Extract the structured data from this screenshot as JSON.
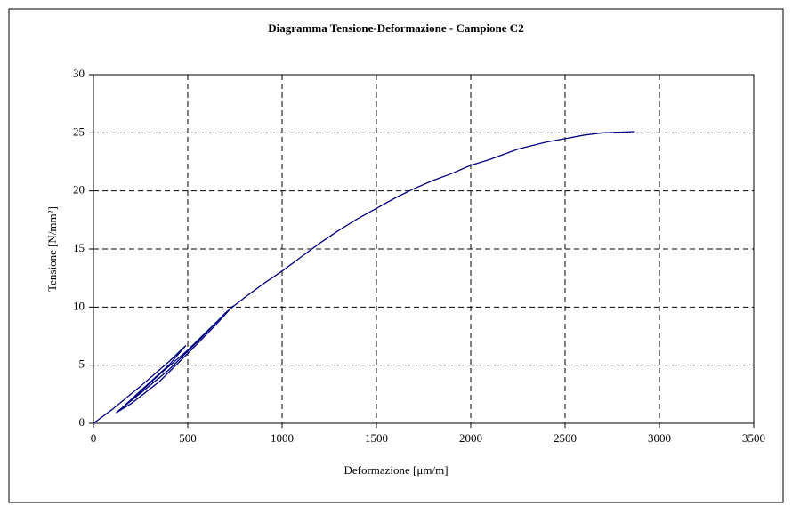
{
  "chart_data": {
    "type": "line",
    "title": "Diagramma Tensione-Deformazione - Campione C2",
    "xlabel": "Deformazione [μm/m]",
    "ylabel": "Tensione [N/mm²]",
    "x": [
      0,
      100,
      250,
      400,
      490,
      400,
      250,
      150,
      120,
      200,
      350,
      500,
      620,
      740,
      650,
      500,
      350,
      200,
      120,
      250,
      400,
      550,
      700,
      745,
      800,
      900,
      1000,
      1100,
      1200,
      1300,
      1400,
      1500,
      1600,
      1700,
      1800,
      1900,
      2000,
      2100,
      2250,
      2400,
      2500,
      2600,
      2700,
      2870
    ],
    "series": [
      {
        "name": "C2",
        "color": "#000080",
        "values": [
          0,
          1.2,
          3.2,
          5.3,
          6.7,
          5.0,
          2.8,
          1.3,
          0.9,
          2.0,
          4.2,
          6.3,
          8.2,
          10.1,
          8.5,
          6.0,
          3.6,
          1.7,
          0.9,
          2.6,
          4.6,
          7.0,
          9.5,
          10.1,
          10.8,
          12.0,
          13.1,
          14.3,
          15.5,
          16.6,
          17.6,
          18.5,
          19.4,
          20.2,
          20.9,
          21.5,
          22.2,
          22.7,
          23.6,
          24.2,
          24.5,
          24.8,
          25.0,
          25.1
        ]
      }
    ],
    "xlim": [
      0,
      3500
    ],
    "xticks": [
      0,
      500,
      1000,
      1500,
      2000,
      2500,
      3000,
      3500
    ],
    "ylim": [
      0,
      30
    ],
    "yticks": [
      0,
      5,
      10,
      15,
      20,
      25,
      30
    ],
    "grid": true
  }
}
